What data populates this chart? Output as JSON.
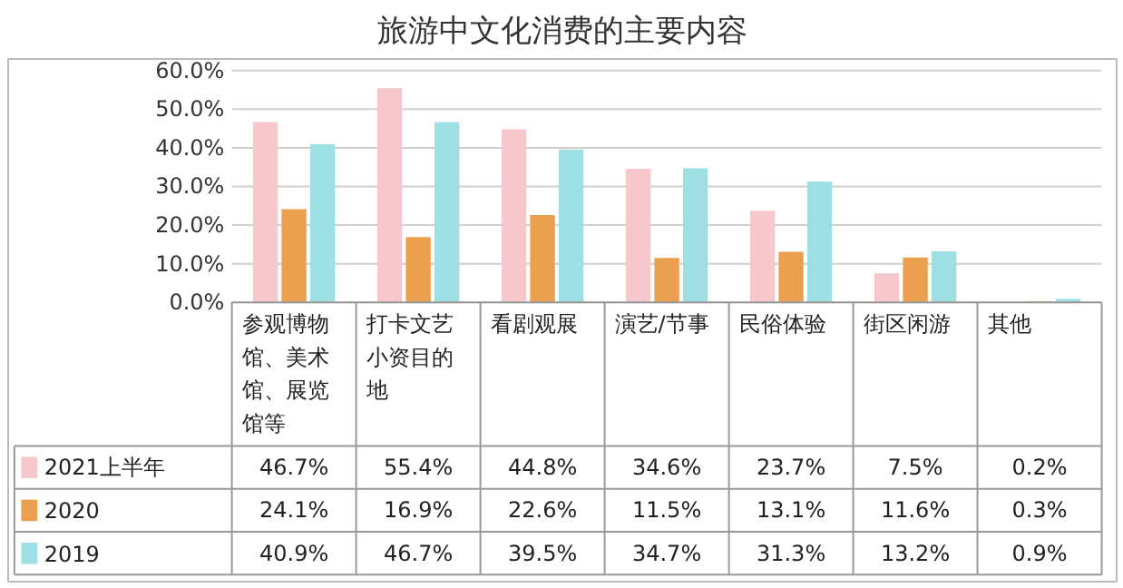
{
  "chart_data": {
    "type": "bar",
    "title": "旅游中文化消费的主要内容",
    "categories": [
      "参观博物馆、美术馆、展览馆等",
      "打卡文艺小资目的地",
      "看剧观展",
      "演艺/节事",
      "民俗体验",
      "街区闲游",
      "其他"
    ],
    "series": [
      {
        "name": "2021上半年",
        "color": "#f6c8cc",
        "values": [
          46.7,
          55.4,
          44.8,
          34.6,
          23.7,
          7.5,
          0.2
        ],
        "value_labels": [
          "46.7%",
          "55.4%",
          "44.8%",
          "34.6%",
          "23.7%",
          "7.5%",
          "0.2%"
        ]
      },
      {
        "name": "2020",
        "color": "#eba04f",
        "values": [
          24.1,
          16.9,
          22.6,
          11.5,
          13.1,
          11.6,
          0.3
        ],
        "value_labels": [
          "24.1%",
          "16.9%",
          "22.6%",
          "11.5%",
          "13.1%",
          "11.6%",
          "0.3%"
        ]
      },
      {
        "name": "2019",
        "color": "#9edfe3",
        "values": [
          40.9,
          46.7,
          39.5,
          34.7,
          31.3,
          13.2,
          0.9
        ],
        "value_labels": [
          "40.9%",
          "46.7%",
          "39.5%",
          "34.7%",
          "31.3%",
          "13.2%",
          "0.9%"
        ]
      }
    ],
    "ylim": [
      0,
      60
    ],
    "yticks": [
      {
        "value": 0,
        "label": "0.0%"
      },
      {
        "value": 10,
        "label": "10.0%"
      },
      {
        "value": 20,
        "label": "20.0%"
      },
      {
        "value": 30,
        "label": "30.0%"
      },
      {
        "value": 40,
        "label": "40.0%"
      },
      {
        "value": 50,
        "label": "50.0%"
      },
      {
        "value": 60,
        "label": "60.0%"
      }
    ],
    "grid": "y",
    "legend": "bottom"
  }
}
